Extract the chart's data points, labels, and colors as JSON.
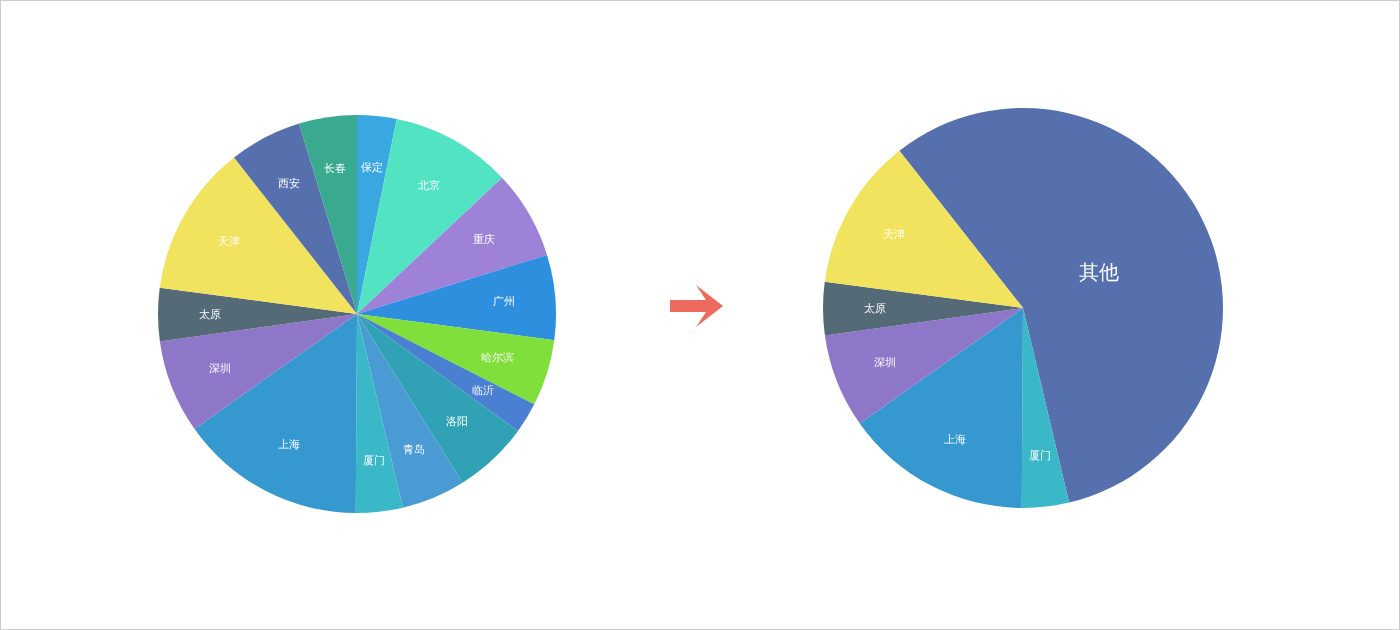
{
  "chart_data": [
    {
      "type": "pie",
      "categories": [
        "保定",
        "北京",
        "重庆",
        "广州",
        "哈尔滨",
        "临沂",
        "洛阳",
        "青岛",
        "厦门",
        "上海",
        "深圳",
        "太原",
        "天津",
        "西安",
        "长春"
      ],
      "values": [
        3.2,
        9.8,
        7.2,
        6.9,
        5.4,
        2.5,
        6.1,
        5.2,
        3.8,
        15.1,
        7.6,
        4.3,
        12.3,
        5.9,
        4.7
      ],
      "colors": [
        "#3aa8e0",
        "#52e3c3",
        "#9d82d8",
        "#2f8fdf",
        "#80df3a",
        "#4a7fd1",
        "#31a2b5",
        "#4a9ad4",
        "#3bb8c8",
        "#3598cf",
        "#8e76c9",
        "#546a77",
        "#f2e35e",
        "#5670ae",
        "#39a98f"
      ],
      "data_labels": false
    },
    {
      "type": "pie",
      "categories": [
        "其他",
        "厦门",
        "上海",
        "深圳",
        "太原",
        "天津"
      ],
      "values": [
        56.9,
        3.8,
        15.1,
        7.6,
        4.3,
        12.3
      ],
      "colors": [
        "#5670ae",
        "#3bb8c8",
        "#3598cf",
        "#8e76c9",
        "#546a77",
        "#f2e35e"
      ],
      "data_labels": false
    }
  ]
}
